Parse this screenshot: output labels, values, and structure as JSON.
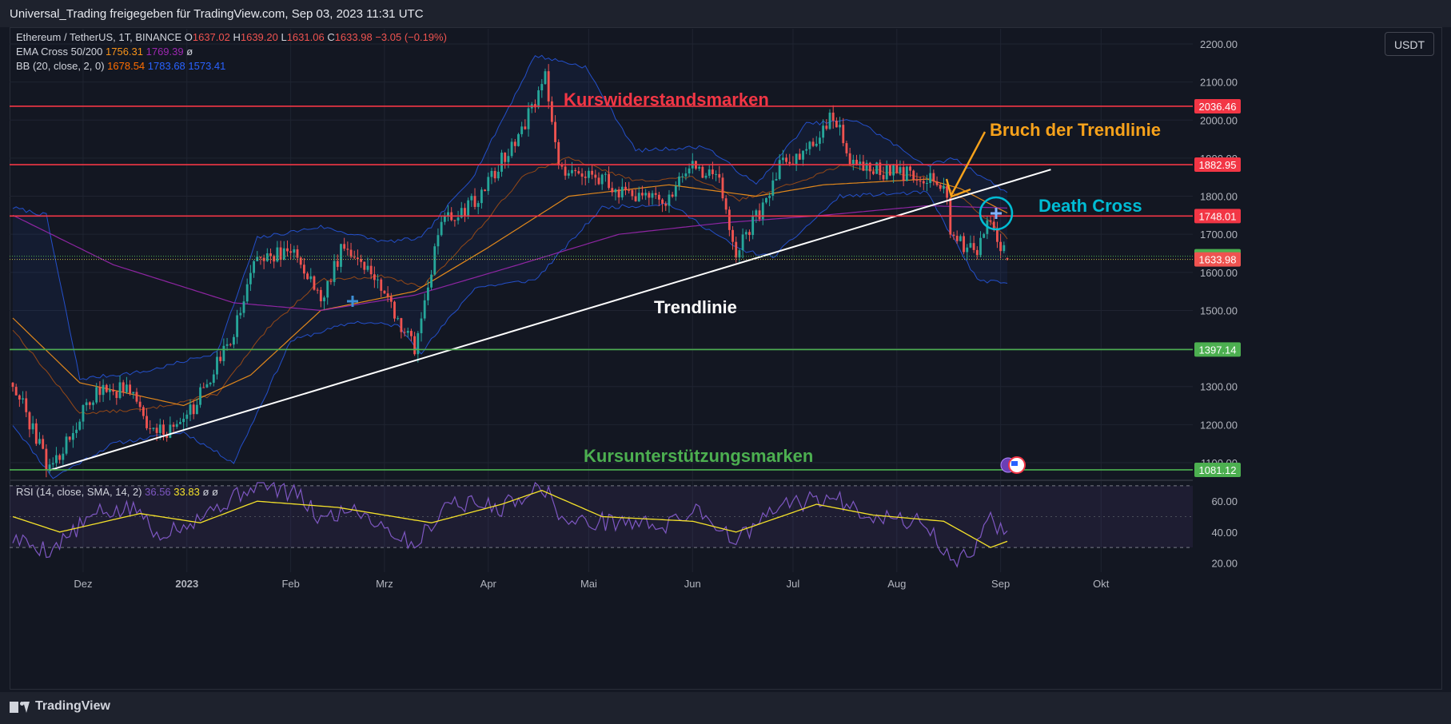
{
  "header": {
    "share_text": "Universal_Trading freigegeben für TradingView.com, Sep 03, 2023 11:31 UTC"
  },
  "footer": {
    "brand": "TradingView"
  },
  "currency_button": "USDT",
  "legend": {
    "symbol": "Ethereum / TetherUS, 1T, BINANCE",
    "o_label": "O",
    "o_value": "1637.02",
    "h_label": "H",
    "h_value": "1639.20",
    "l_label": "L",
    "l_value": "1631.06",
    "c_label": "C",
    "c_value": "1633.98",
    "change": "−3.05 (−0.19%)",
    "ema_label": "EMA Cross 50/200",
    "ema_v1": "1756.31",
    "ema_v2": "1769.39",
    "ema_v3": "ø",
    "bb_label": "BB (20, close, 2, 0)",
    "bb_v1": "1678.54",
    "bb_v2": "1783.68",
    "bb_v3": "1573.41",
    "rsi_label": "RSI (14, close, SMA, 14, 2)",
    "rsi_v1": "36.56",
    "rsi_v2": "33.83",
    "rsi_v3": "ø",
    "rsi_v4": "ø"
  },
  "colors": {
    "up": "#26a69a",
    "down": "#ef5350",
    "resistance": "#f23645",
    "support": "#4caf50",
    "ema50": "#f7931a",
    "ema200": "#9c27b0",
    "bb": "#2962ff",
    "rsi": "#7e57c2",
    "rsi_ma": "#f5e22a",
    "annotation_orange": "#f7a21b",
    "annotation_cyan": "#00bcd4"
  },
  "chart_data": {
    "type": "candlestick",
    "ylim": [
      1060,
      2240
    ],
    "y_ticks": [
      "2200.00",
      "2100.00",
      "2000.00",
      "1900.00",
      "1800.00",
      "1700.00",
      "1600.00",
      "1500.00",
      "1400.00",
      "1300.00",
      "1200.00",
      "1100.00"
    ],
    "x_ticks": [
      {
        "label": "Dez",
        "date": "2022-12-01",
        "bold": false
      },
      {
        "label": "2023",
        "date": "2023-01-01",
        "bold": true
      },
      {
        "label": "Feb",
        "date": "2023-02-01",
        "bold": false
      },
      {
        "label": "Mrz",
        "date": "2023-03-01",
        "bold": false
      },
      {
        "label": "Apr",
        "date": "2023-04-01",
        "bold": false
      },
      {
        "label": "Mai",
        "date": "2023-05-01",
        "bold": false
      },
      {
        "label": "Jun",
        "date": "2023-06-01",
        "bold": false
      },
      {
        "label": "Jul",
        "date": "2023-07-01",
        "bold": false
      },
      {
        "label": "Aug",
        "date": "2023-08-01",
        "bold": false
      },
      {
        "label": "Sep",
        "date": "2023-09-01",
        "bold": false
      },
      {
        "label": "Okt",
        "date": "2023-10-01",
        "bold": false
      }
    ],
    "price_anchors": [
      [
        "2022-11-10",
        1310
      ],
      [
        "2022-11-21",
        1080
      ],
      [
        "2022-12-05",
        1290
      ],
      [
        "2022-12-16",
        1290
      ],
      [
        "2022-12-21",
        1170
      ],
      [
        "2022-12-31",
        1200
      ],
      [
        "2023-01-14",
        1420
      ],
      [
        "2023-01-22",
        1640
      ],
      [
        "2023-02-03",
        1650
      ],
      [
        "2023-02-10",
        1520
      ],
      [
        "2023-02-17",
        1680
      ],
      [
        "2023-02-26",
        1590
      ],
      [
        "2023-03-10",
        1400
      ],
      [
        "2023-03-18",
        1730
      ],
      [
        "2023-03-29",
        1790
      ],
      [
        "2023-04-13",
        2010
      ],
      [
        "2023-04-18",
        2110
      ],
      [
        "2023-04-22",
        1870
      ],
      [
        "2023-05-03",
        1860
      ],
      [
        "2023-05-12",
        1800
      ],
      [
        "2023-05-24",
        1790
      ],
      [
        "2023-05-31",
        1880
      ],
      [
        "2023-06-09",
        1840
      ],
      [
        "2023-06-14",
        1650
      ],
      [
        "2023-06-21",
        1760
      ],
      [
        "2023-06-27",
        1880
      ],
      [
        "2023-07-04",
        1910
      ],
      [
        "2023-07-13",
        2010
      ],
      [
        "2023-07-18",
        1900
      ],
      [
        "2023-07-25",
        1870
      ],
      [
        "2023-08-10",
        1850
      ],
      [
        "2023-08-16",
        1810
      ],
      [
        "2023-08-17",
        1690
      ],
      [
        "2023-08-25",
        1650
      ],
      [
        "2023-08-29",
        1740
      ],
      [
        "2023-09-03",
        1634
      ]
    ],
    "bb_mid": [
      [
        "2022-11-10",
        1450
      ],
      [
        "2022-11-30",
        1230
      ],
      [
        "2022-12-20",
        1240
      ],
      [
        "2023-01-10",
        1280
      ],
      [
        "2023-01-25",
        1450
      ],
      [
        "2023-02-10",
        1580
      ],
      [
        "2023-03-01",
        1590
      ],
      [
        "2023-03-12",
        1560
      ],
      [
        "2023-03-28",
        1700
      ],
      [
        "2023-04-12",
        1860
      ],
      [
        "2023-04-25",
        1900
      ],
      [
        "2023-05-15",
        1840
      ],
      [
        "2023-06-01",
        1850
      ],
      [
        "2023-06-15",
        1790
      ],
      [
        "2023-06-30",
        1830
      ],
      [
        "2023-07-15",
        1880
      ],
      [
        "2023-08-10",
        1850
      ],
      [
        "2023-08-20",
        1800
      ],
      [
        "2023-09-03",
        1690
      ]
    ],
    "bb_upper": [
      [
        "2022-11-10",
        1770
      ],
      [
        "2022-11-20",
        1750
      ],
      [
        "2022-11-30",
        1320
      ],
      [
        "2022-12-20",
        1340
      ],
      [
        "2023-01-10",
        1390
      ],
      [
        "2023-01-22",
        1690
      ],
      [
        "2023-02-10",
        1720
      ],
      [
        "2023-03-01",
        1680
      ],
      [
        "2023-03-12",
        1690
      ],
      [
        "2023-03-28",
        1860
      ],
      [
        "2023-04-15",
        2170
      ],
      [
        "2023-04-30",
        2140
      ],
      [
        "2023-05-15",
        1920
      ],
      [
        "2023-06-05",
        1930
      ],
      [
        "2023-06-20",
        1830
      ],
      [
        "2023-07-05",
        1990
      ],
      [
        "2023-07-20",
        2000
      ],
      [
        "2023-08-10",
        1880
      ],
      [
        "2023-08-18",
        1900
      ],
      [
        "2023-09-03",
        1810
      ]
    ],
    "bb_lower": [
      [
        "2022-11-10",
        1200
      ],
      [
        "2022-11-22",
        1060
      ],
      [
        "2022-12-10",
        1150
      ],
      [
        "2022-12-31",
        1180
      ],
      [
        "2023-01-15",
        1100
      ],
      [
        "2023-02-01",
        1420
      ],
      [
        "2023-02-20",
        1470
      ],
      [
        "2023-03-05",
        1460
      ],
      [
        "2023-03-12",
        1390
      ],
      [
        "2023-03-28",
        1560
      ],
      [
        "2023-04-15",
        1580
      ],
      [
        "2023-05-05",
        1770
      ],
      [
        "2023-05-25",
        1780
      ],
      [
        "2023-06-15",
        1660
      ],
      [
        "2023-06-25",
        1640
      ],
      [
        "2023-07-15",
        1800
      ],
      [
        "2023-08-10",
        1810
      ],
      [
        "2023-08-25",
        1580
      ],
      [
        "2023-09-03",
        1570
      ]
    ],
    "ema50": [
      [
        "2022-11-10",
        1480
      ],
      [
        "2022-11-30",
        1310
      ],
      [
        "2022-12-31",
        1250
      ],
      [
        "2023-01-20",
        1330
      ],
      [
        "2023-02-10",
        1500
      ],
      [
        "2023-03-10",
        1550
      ],
      [
        "2023-03-31",
        1660
      ],
      [
        "2023-04-25",
        1800
      ],
      [
        "2023-05-25",
        1830
      ],
      [
        "2023-06-20",
        1800
      ],
      [
        "2023-07-10",
        1830
      ],
      [
        "2023-08-10",
        1845
      ],
      [
        "2023-08-20",
        1820
      ],
      [
        "2023-09-03",
        1756
      ]
    ],
    "ema200": [
      [
        "2022-11-10",
        1750
      ],
      [
        "2022-12-10",
        1620
      ],
      [
        "2023-01-15",
        1520
      ],
      [
        "2023-02-10",
        1500
      ],
      [
        "2023-03-10",
        1540
      ],
      [
        "2023-04-10",
        1620
      ],
      [
        "2023-05-10",
        1700
      ],
      [
        "2023-06-10",
        1730
      ],
      [
        "2023-07-10",
        1750
      ],
      [
        "2023-08-10",
        1775
      ],
      [
        "2023-09-03",
        1769
      ]
    ],
    "horizontal_levels": [
      {
        "value": 2036.46,
        "label": "2036.46",
        "kind": "resistance"
      },
      {
        "value": 1882.95,
        "label": "1882.95",
        "kind": "resistance"
      },
      {
        "value": 1748.01,
        "label": "1748.01",
        "kind": "resistance"
      },
      {
        "value": 1642.4,
        "label": "1642.40",
        "kind": "support"
      },
      {
        "value": 1633.98,
        "label": "1633.98",
        "kind": "last"
      },
      {
        "value": 1397.14,
        "label": "1397.14",
        "kind": "support"
      },
      {
        "value": 1081.12,
        "label": "1081.12",
        "kind": "support"
      }
    ],
    "trendline": [
      [
        "2022-11-21",
        1080
      ],
      [
        "2023-09-16",
        1870
      ]
    ],
    "annotations": {
      "resistance": "Kurswiderstandsmarken",
      "support": "Kursunterstützungsmarken",
      "trend": "Trendlinie",
      "break": "Bruch der Trendlinie",
      "death_cross": "Death Cross"
    },
    "rsi": {
      "ylim": [
        14,
        72
      ],
      "ticks": [
        "60.00",
        "40.00",
        "20.00"
      ],
      "upper_band": 70,
      "lower_band": 30,
      "mid": 50,
      "rsi_anchors": [
        [
          "2022-11-10",
          36
        ],
        [
          "2022-11-21",
          28
        ],
        [
          "2022-12-05",
          52
        ],
        [
          "2022-12-18",
          55
        ],
        [
          "2022-12-22",
          38
        ],
        [
          "2023-01-01",
          46
        ],
        [
          "2023-01-15",
          62
        ],
        [
          "2023-01-22",
          72
        ],
        [
          "2023-02-03",
          64
        ],
        [
          "2023-02-10",
          48
        ],
        [
          "2023-02-20",
          56
        ],
        [
          "2023-03-10",
          31
        ],
        [
          "2023-03-20",
          60
        ],
        [
          "2023-04-05",
          56
        ],
        [
          "2023-04-17",
          71
        ],
        [
          "2023-04-24",
          46
        ],
        [
          "2023-05-10",
          47
        ],
        [
          "2023-05-25",
          44
        ],
        [
          "2023-06-02",
          56
        ],
        [
          "2023-06-14",
          34
        ],
        [
          "2023-06-28",
          58
        ],
        [
          "2023-07-13",
          62
        ],
        [
          "2023-07-25",
          51
        ],
        [
          "2023-08-10",
          45
        ],
        [
          "2023-08-18",
          18
        ],
        [
          "2023-08-24",
          30
        ],
        [
          "2023-08-29",
          49
        ],
        [
          "2023-09-03",
          36
        ]
      ],
      "ma_anchors": [
        [
          "2022-11-10",
          50
        ],
        [
          "2022-11-24",
          40
        ],
        [
          "2022-12-18",
          52
        ],
        [
          "2023-01-05",
          46
        ],
        [
          "2023-01-22",
          60
        ],
        [
          "2023-02-15",
          56
        ],
        [
          "2023-03-15",
          46
        ],
        [
          "2023-04-05",
          58
        ],
        [
          "2023-04-17",
          67
        ],
        [
          "2023-05-05",
          50
        ],
        [
          "2023-06-01",
          47
        ],
        [
          "2023-06-14",
          40
        ],
        [
          "2023-07-08",
          58
        ],
        [
          "2023-07-25",
          51
        ],
        [
          "2023-08-15",
          47
        ],
        [
          "2023-08-29",
          30
        ],
        [
          "2023-09-03",
          34
        ]
      ]
    }
  }
}
